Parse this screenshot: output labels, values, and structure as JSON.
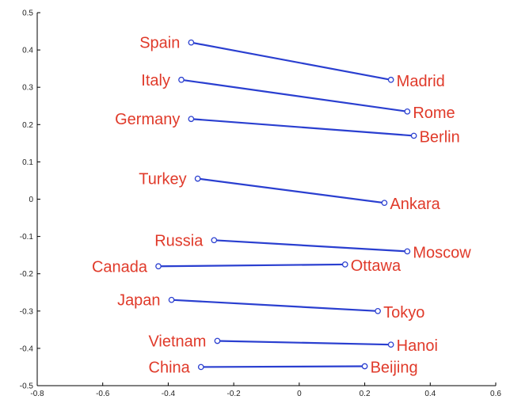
{
  "chart_data": {
    "type": "scatter",
    "title": "",
    "xlabel": "",
    "ylabel": "",
    "xlim": [
      -0.8,
      0.6
    ],
    "ylim": [
      -0.5,
      0.5
    ],
    "grid": false,
    "x_ticks": [
      "-0.8",
      "-0.6",
      "-0.4",
      "-0.2",
      "0",
      "0.2",
      "0.4",
      "0.6"
    ],
    "y_ticks": [
      "0.5",
      "0.4",
      "0.3",
      "0.2",
      "0.1",
      "0",
      "-0.1",
      "-0.2",
      "-0.3",
      "-0.4",
      "-0.5"
    ],
    "colors": {
      "line": "#2a3fd0",
      "label": "#e03a2a",
      "axis": "#000000"
    },
    "pairs": [
      {
        "country": "Spain",
        "capital": "Madrid",
        "country_xy": [
          -0.33,
          0.42
        ],
        "capital_xy": [
          0.28,
          0.32
        ]
      },
      {
        "country": "Italy",
        "capital": "Rome",
        "country_xy": [
          -0.36,
          0.32
        ],
        "capital_xy": [
          0.33,
          0.235
        ]
      },
      {
        "country": "Germany",
        "capital": "Berlin",
        "country_xy": [
          -0.33,
          0.215
        ],
        "capital_xy": [
          0.35,
          0.17
        ]
      },
      {
        "country": "Turkey",
        "capital": "Ankara",
        "country_xy": [
          -0.31,
          0.055
        ],
        "capital_xy": [
          0.26,
          -0.01
        ]
      },
      {
        "country": "Russia",
        "capital": "Moscow",
        "country_xy": [
          -0.26,
          -0.11
        ],
        "capital_xy": [
          0.33,
          -0.14
        ]
      },
      {
        "country": "Canada",
        "capital": "Ottawa",
        "country_xy": [
          -0.43,
          -0.18
        ],
        "capital_xy": [
          0.14,
          -0.175
        ]
      },
      {
        "country": "Japan",
        "capital": "Tokyo",
        "country_xy": [
          -0.39,
          -0.27
        ],
        "capital_xy": [
          0.24,
          -0.3
        ]
      },
      {
        "country": "Vietnam",
        "capital": "Hanoi",
        "country_xy": [
          -0.25,
          -0.38
        ],
        "capital_xy": [
          0.28,
          -0.39
        ]
      },
      {
        "country": "China",
        "capital": "Beijing",
        "country_xy": [
          -0.3,
          -0.45
        ],
        "capital_xy": [
          0.2,
          -0.448
        ]
      }
    ]
  }
}
